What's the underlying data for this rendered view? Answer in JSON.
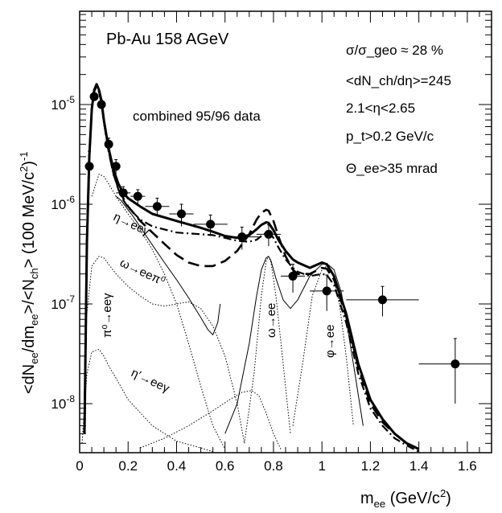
{
  "chart_data": {
    "type": "scatter",
    "title": "Pb-Au 158 AGeV",
    "subtitle": "combined 95/96 data",
    "xlabel": "m_ee (GeV/c^2)",
    "ylabel": "<dN_ee/dm_ee>/<N_ch> (100 MeV/c^2)^-1",
    "xlim": [
      0,
      1.7
    ],
    "ylim": [
      3e-09,
      3e-05
    ],
    "y_scale": "log",
    "x_ticks": [
      "0",
      "0.2",
      "0.4",
      "0.6",
      "0.8",
      "1",
      "1.2",
      "1.4",
      "1.6"
    ],
    "y_ticks": [
      "10^-8",
      "10^-7",
      "10^-6",
      "10^-5"
    ],
    "cuts": {
      "sigma": "σ/σ_geo ≈ 28 %",
      "dndeta": "<dN_ch/dη>=245",
      "eta": "2.1<η<2.65",
      "pt": "p_t>0.2 GeV/c",
      "theta": "Θ_ee>35 mrad"
    },
    "process_labels": {
      "pi0": "π⁰→eeγ",
      "eta": "η→eeγ",
      "omega_dalitz": "ω→eeπ⁰",
      "etaprime": "η′→eeγ",
      "omega": "ω→ee",
      "phi": "φ→ee"
    },
    "data_points": [
      {
        "x": 0.04,
        "y": 2.4e-06,
        "dx": 0,
        "dy_lo": 1e-06,
        "dy_hi": 1e-06
      },
      {
        "x": 0.06,
        "y": 1.2e-05,
        "dx": 0,
        "dy_lo": 1e-06,
        "dy_hi": 1e-06
      },
      {
        "x": 0.09,
        "y": 1e-05,
        "dx": 0,
        "dy_lo": 1e-06,
        "dy_hi": 1e-06
      },
      {
        "x": 0.12,
        "y": 4e-06,
        "dx": 0,
        "dy_lo": 6e-07,
        "dy_hi": 6e-07
      },
      {
        "x": 0.15,
        "y": 2.4e-06,
        "dx": 0,
        "dy_lo": 4e-07,
        "dy_hi": 4e-07
      },
      {
        "x": 0.18,
        "y": 1.3e-06,
        "dx": 0.03,
        "dy_lo": 2e-07,
        "dy_hi": 2e-07
      },
      {
        "x": 0.24,
        "y": 1.2e-06,
        "dx": 0.03,
        "dy_lo": 2e-07,
        "dy_hi": 2e-07
      },
      {
        "x": 0.32,
        "y": 9.5e-07,
        "dx": 0.05,
        "dy_lo": 2e-07,
        "dy_hi": 2e-07
      },
      {
        "x": 0.42,
        "y": 8e-07,
        "dx": 0.05,
        "dy_lo": 2e-07,
        "dy_hi": 2e-07
      },
      {
        "x": 0.54,
        "y": 6.3e-07,
        "dx": 0.07,
        "dy_lo": 1.5e-07,
        "dy_hi": 1.5e-07
      },
      {
        "x": 0.67,
        "y": 4.7e-07,
        "dx": 0.07,
        "dy_lo": 1.2e-07,
        "dy_hi": 1.2e-07
      },
      {
        "x": 0.78,
        "y": 5e-07,
        "dx": 0.05,
        "dy_lo": 1.2e-07,
        "dy_hi": 1.2e-07
      },
      {
        "x": 0.88,
        "y": 1.9e-07,
        "dx": 0.05,
        "dy_lo": 6e-08,
        "dy_hi": 6e-08
      },
      {
        "x": 1.02,
        "y": 1.35e-07,
        "dx": 0.07,
        "dy_lo": 5e-08,
        "dy_hi": 6e-08
      },
      {
        "x": 1.25,
        "y": 1.1e-07,
        "dx": 0.15,
        "dy_lo": 3.5e-08,
        "dy_hi": 4e-08
      },
      {
        "x": 1.55,
        "y": 2.5e-08,
        "dx": 0.15,
        "dy_lo": 1.5e-08,
        "dy_hi": 2e-08
      }
    ],
    "series": [
      {
        "style": "thick-solid",
        "x": [
          0.02,
          0.03,
          0.04,
          0.05,
          0.06,
          0.07,
          0.08,
          0.09,
          0.1,
          0.12,
          0.14,
          0.16,
          0.18,
          0.2,
          0.25,
          0.3,
          0.4,
          0.5,
          0.55,
          0.6,
          0.65,
          0.7,
          0.73,
          0.75,
          0.77,
          0.78,
          0.8,
          0.82,
          0.85,
          0.88,
          0.9,
          0.95,
          1.0,
          1.02,
          1.05,
          1.1,
          1.15,
          1.2,
          1.25,
          1.3,
          1.35,
          1.4
        ],
        "y": [
          5e-09,
          4e-07,
          3e-06,
          9e-06,
          1.4e-05,
          1.6e-05,
          1.4e-05,
          1.1e-05,
          7e-06,
          3.6e-06,
          2.2e-06,
          1.6e-06,
          1.3e-06,
          1.15e-06,
          9.5e-07,
          8e-07,
          6.8e-07,
          5.8e-07,
          5.3e-07,
          4.8e-07,
          4.6e-07,
          4.9e-07,
          5.6e-07,
          6.2e-07,
          6.6e-07,
          6.5e-07,
          5.5e-07,
          4.4e-07,
          3.4e-07,
          2.8e-07,
          2.6e-07,
          2.3e-07,
          2.6e-07,
          2.5e-07,
          1.9e-07,
          8e-08,
          2.5e-08,
          1.1e-08,
          7e-09,
          5e-09,
          4e-09,
          3.5e-09
        ]
      },
      {
        "style": "dashed",
        "x": [
          0.02,
          0.03,
          0.04,
          0.05,
          0.06,
          0.07,
          0.08,
          0.09,
          0.1,
          0.12,
          0.14,
          0.16,
          0.18,
          0.2,
          0.25,
          0.3,
          0.35,
          0.4,
          0.45,
          0.5,
          0.55,
          0.6,
          0.65,
          0.7,
          0.73,
          0.75,
          0.77,
          0.78,
          0.8,
          0.82,
          0.85,
          0.88,
          0.9,
          0.95,
          1.0,
          1.02,
          1.05,
          1.1,
          1.15,
          1.2,
          1.25,
          1.3,
          1.35,
          1.4
        ],
        "y": [
          5e-09,
          4e-07,
          3e-06,
          9e-06,
          1.35e-05,
          1.55e-05,
          1.35e-05,
          1.05e-05,
          6.8e-06,
          3.4e-06,
          2e-06,
          1.45e-06,
          1.15e-06,
          9.5e-07,
          6.8e-07,
          5.2e-07,
          4e-07,
          3.1e-07,
          2.6e-07,
          2.4e-07,
          2.4e-07,
          2.7e-07,
          3.4e-07,
          5e-07,
          7e-07,
          8.2e-07,
          8.8e-07,
          8.6e-07,
          6.8e-07,
          4.8e-07,
          3e-07,
          2.2e-07,
          2e-07,
          2e-07,
          2.3e-07,
          2.25e-07,
          1.75e-07,
          7.5e-08,
          2.3e-08,
          1e-08,
          6.5e-09,
          5e-09,
          4e-09,
          3.5e-09
        ]
      },
      {
        "style": "dash-dot",
        "x": [
          0.02,
          0.03,
          0.04,
          0.05,
          0.06,
          0.07,
          0.08,
          0.09,
          0.1,
          0.12,
          0.14,
          0.16,
          0.18,
          0.2,
          0.25,
          0.3,
          0.4,
          0.5,
          0.55,
          0.6,
          0.65,
          0.7,
          0.73,
          0.75,
          0.77,
          0.78,
          0.8,
          0.82,
          0.85,
          0.88,
          0.9,
          0.95,
          1.0,
          1.02,
          1.05,
          1.1,
          1.15,
          1.2,
          1.25,
          1.3,
          1.35,
          1.4
        ],
        "y": [
          5e-09,
          4e-07,
          3e-06,
          9e-06,
          1.35e-05,
          1.55e-05,
          1.35e-05,
          1.05e-05,
          6.8e-06,
          3.4e-06,
          2e-06,
          1.4e-06,
          1.1e-06,
          9.3e-07,
          7e-07,
          6e-07,
          5.2e-07,
          5e-07,
          4.9e-07,
          4.6e-07,
          4.3e-07,
          4.2e-07,
          4.4e-07,
          4.8e-07,
          5.2e-07,
          5.2e-07,
          4.6e-07,
          3.7e-07,
          2.8e-07,
          2.3e-07,
          2.1e-07,
          1.9e-07,
          2e-07,
          1.95e-07,
          1.55e-07,
          6.5e-08,
          2e-08,
          9e-09,
          6e-09,
          4.5e-09,
          3.8e-09,
          3.3e-09
        ]
      },
      {
        "style": "thin-solid",
        "x": [
          0.15,
          0.17,
          0.2,
          0.22,
          0.25,
          0.3,
          0.35,
          0.4,
          0.45,
          0.5,
          0.53,
          0.55,
          0.57,
          0.58
        ],
        "y": [
          1.2e-06,
          1.1e-06,
          8.8e-07,
          7.6e-07,
          5.9e-07,
          3.9e-07,
          2.6e-07,
          1.75e-07,
          1.15e-07,
          7.3e-08,
          5.5e-08,
          4.9e-08,
          6.5e-08,
          1e-07
        ]
      },
      {
        "style": "thin-solid",
        "x": [
          0.6,
          0.65,
          0.7,
          0.73,
          0.75,
          0.77,
          0.78,
          0.79,
          0.81,
          0.84,
          0.87,
          0.9,
          0.95,
          1.0,
          1.02,
          1.05,
          1.08,
          1.1,
          1.13,
          1.17
        ],
        "y": [
          5e-09,
          1e-08,
          4e-08,
          1.2e-07,
          2.2e-07,
          2.9e-07,
          3e-07,
          2.7e-07,
          1.8e-07,
          1.1e-07,
          9e-08,
          1.1e-07,
          1.9e-07,
          2.5e-07,
          2.55e-07,
          2.2e-07,
          1.3e-07,
          7e-08,
          2.5e-08,
          6e-09
        ]
      },
      {
        "style": "dotted",
        "x": [
          0.01,
          0.03,
          0.05,
          0.08,
          0.1,
          0.12,
          0.15,
          0.2,
          0.3,
          0.4,
          0.5,
          0.55
        ],
        "y": [
          4e-09,
          2e-08,
          3.3e-08,
          3.5e-08,
          3e-08,
          2.4e-08,
          1.8e-08,
          1.1e-08,
          6e-09,
          4.2e-09,
          3.6e-09,
          3.3e-09
        ]
      },
      {
        "style": "dotted",
        "x": [
          0.03,
          0.05,
          0.08,
          0.1,
          0.12,
          0.15,
          0.2,
          0.25,
          0.3,
          0.35,
          0.4,
          0.45,
          0.5,
          0.55,
          0.6,
          0.65,
          0.68
        ],
        "y": [
          8e-08,
          2.4e-07,
          3e-07,
          2.9e-07,
          2.5e-07,
          2e-07,
          1.5e-07,
          1.2e-07,
          1e-07,
          9.5e-08,
          1e-07,
          1.05e-07,
          9e-08,
          6e-08,
          3e-08,
          1e-08,
          4e-09
        ]
      },
      {
        "style": "dotted",
        "x": [
          0.05,
          0.08,
          0.1,
          0.12,
          0.15,
          0.2,
          0.25,
          0.3,
          0.35,
          0.4,
          0.45,
          0.5,
          0.55,
          0.6
        ],
        "y": [
          1.2e-06,
          2e-06,
          1.9e-06,
          1.6e-06,
          1.2e-06,
          8e-07,
          5.5e-07,
          3.5e-07,
          2e-07,
          1e-07,
          4e-08,
          1.5e-08,
          6e-09,
          3.5e-09
        ]
      },
      {
        "style": "dotted",
        "x": [
          0.25,
          0.35,
          0.45,
          0.55,
          0.62,
          0.67,
          0.71,
          0.74,
          0.77,
          0.8,
          0.83
        ],
        "y": [
          3.6e-09,
          4.5e-09,
          6e-09,
          8.5e-09,
          1.1e-08,
          1.3e-08,
          1.35e-08,
          1.2e-08,
          8e-09,
          5e-09,
          3.5e-09
        ]
      },
      {
        "style": "dotted",
        "x": [
          0.68,
          0.72,
          0.75,
          0.77,
          0.78,
          0.79,
          0.81,
          0.84,
          0.87
        ],
        "y": [
          4e-09,
          2e-08,
          1.2e-07,
          2.7e-07,
          3e-07,
          2.6e-07,
          1.2e-07,
          2.5e-08,
          5e-09
        ]
      },
      {
        "style": "dotted",
        "x": [
          0.88,
          0.92,
          0.96,
          1.0,
          1.02,
          1.04,
          1.07,
          1.1,
          1.13
        ],
        "y": [
          6e-09,
          2.5e-08,
          1.2e-07,
          2.2e-07,
          2.4e-07,
          2.2e-07,
          1.1e-07,
          3e-08,
          6e-09
        ]
      }
    ]
  }
}
